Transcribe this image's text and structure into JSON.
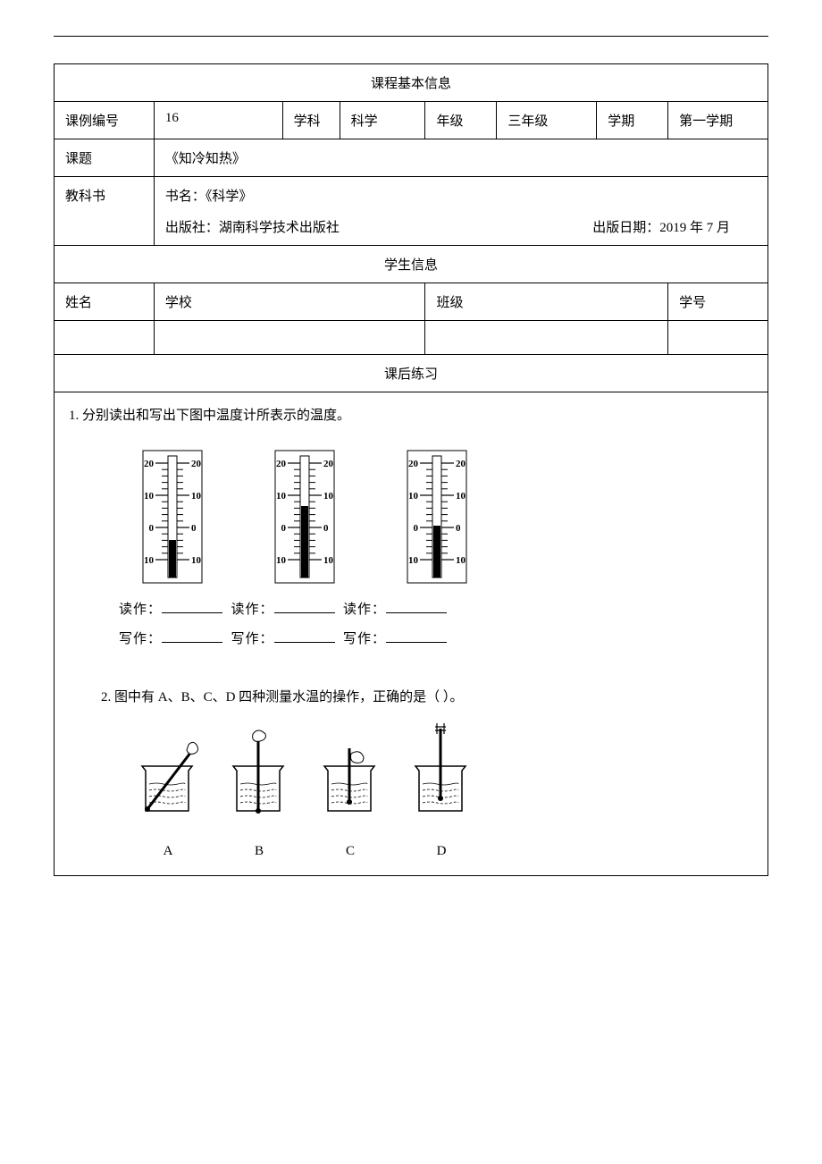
{
  "info_section_title": "课程基本信息",
  "row1": {
    "label_id": "课例编号",
    "val_id": "16",
    "label_subject": "学科",
    "val_subject": "科学",
    "label_grade": "年级",
    "val_grade": "三年级",
    "label_term": "学期",
    "val_term": "第一学期"
  },
  "row2": {
    "label": "课题",
    "val": "《知冷知热》"
  },
  "row3": {
    "label": "教科书",
    "book_line": "书名：《科学》",
    "pub_line": "出版社：湖南科学技术出版社",
    "date_line": "出版日期：2019 年 7 月"
  },
  "student_section_title": "学生信息",
  "student_row": {
    "name_label": "姓名",
    "school_label": "学校",
    "class_label": "班级",
    "id_label": "学号"
  },
  "exercise_title": "课后练习",
  "q1_text": "1.  分别读出和写出下图中温度计所表示的温度。",
  "read_label": "读作：",
  "write_label": "写作：",
  "q2_text": "2.  图中有 A、B、C、D 四种测量水温的操作，正确的是（    ）。",
  "beaker_labels": [
    "A",
    "B",
    "C",
    "D"
  ],
  "thermometer": {
    "scale_labels": [
      "20",
      "10",
      "0",
      "10"
    ],
    "fill_heights": [
      42,
      80,
      58
    ],
    "colors": {
      "stroke": "#000000",
      "fill": "#000000",
      "bg": "#ffffff"
    }
  },
  "colors": {
    "text": "#000000",
    "border": "#000000",
    "background": "#ffffff"
  },
  "fonts": {
    "body_size": 15,
    "family": "SimSun"
  }
}
